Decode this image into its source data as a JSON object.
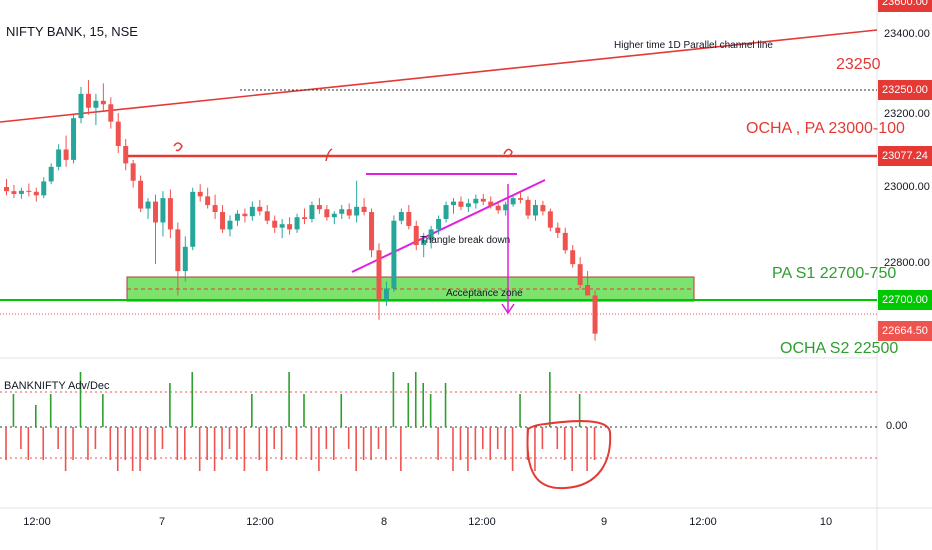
{
  "symbol_header": "NIFTY BANK, 15, NSE",
  "indicator_label": "BANKNIFTY Adv/Dec",
  "annotations": {
    "channel_note": "Higher time 1D Parallel channel line",
    "triangle_note": "Triangle break down",
    "acceptance_note": "Acceptance zone",
    "label_23250": "23250",
    "label_ocha_pa": "OCHA , PA 23000-100",
    "label_pa_s1": "PA S1 22700-750",
    "label_ocha_s2": "OCHA S2 22500"
  },
  "price_axis_ticks": [
    "23400.00",
    "23200.00",
    "23000.00",
    "22800.00"
  ],
  "price_tags": {
    "top_partial": "23600.00",
    "t_23250": "23250.00",
    "t_23077": "23077.24",
    "t_22700": "22700.00",
    "t_22664": "22664.50"
  },
  "indicator_axis": "0.00",
  "time_axis": [
    "12:00",
    "7",
    "12:00",
    "8",
    "12:00",
    "9",
    "12:00",
    "10"
  ],
  "colors": {
    "up": "#26a69a",
    "down": "#ef5350",
    "resistance": "#e53935",
    "support": "#00c800",
    "zone": "#66dd55",
    "triangle": "#e020e0"
  },
  "chart_data": {
    "type": "candlestick",
    "timeframe": "15",
    "y_range": [
      22590,
      23620
    ],
    "levels": [
      {
        "value": 23250,
        "style": "dotted"
      },
      {
        "value": 23077.24,
        "style": "solid"
      },
      {
        "value": 22700,
        "style": "solid"
      },
      {
        "value": 22664.5,
        "style": "dotted"
      }
    ],
    "zone": [
      22685,
      22760
    ],
    "candles": [
      [
        23082,
        23105,
        23058,
        23070
      ],
      [
        23070,
        23088,
        23050,
        23062
      ],
      [
        23062,
        23080,
        23048,
        23071
      ],
      [
        23071,
        23092,
        23055,
        23068
      ],
      [
        23068,
        23080,
        23040,
        23058
      ],
      [
        23058,
        23110,
        23050,
        23098
      ],
      [
        23098,
        23150,
        23090,
        23140
      ],
      [
        23140,
        23205,
        23130,
        23190
      ],
      [
        23190,
        23230,
        23140,
        23160
      ],
      [
        23160,
        23290,
        23150,
        23280
      ],
      [
        23280,
        23370,
        23265,
        23350
      ],
      [
        23350,
        23390,
        23290,
        23310
      ],
      [
        23310,
        23350,
        23260,
        23330
      ],
      [
        23330,
        23380,
        23300,
        23320
      ],
      [
        23320,
        23340,
        23250,
        23270
      ],
      [
        23270,
        23295,
        23180,
        23200
      ],
      [
        23200,
        23220,
        23130,
        23150
      ],
      [
        23150,
        23160,
        23080,
        23100
      ],
      [
        23100,
        23115,
        23010,
        23020
      ],
      [
        23020,
        23050,
        22990,
        23040
      ],
      [
        23040,
        23060,
        22860,
        22980
      ],
      [
        22980,
        23070,
        22940,
        23050
      ],
      [
        23050,
        23075,
        22935,
        22960
      ],
      [
        22960,
        22980,
        22770,
        22840
      ],
      [
        22840,
        22940,
        22810,
        22910
      ],
      [
        22910,
        23080,
        22900,
        23068
      ],
      [
        23068,
        23090,
        23040,
        23055
      ],
      [
        23055,
        23080,
        23020,
        23030
      ],
      [
        23030,
        23060,
        22990,
        23010
      ],
      [
        23010,
        23030,
        22950,
        22960
      ],
      [
        22960,
        23000,
        22940,
        22985
      ],
      [
        22985,
        23015,
        22970,
        23005
      ],
      [
        23005,
        23020,
        22980,
        22998
      ],
      [
        22998,
        23040,
        22985,
        23025
      ],
      [
        23025,
        23045,
        23000,
        23012
      ],
      [
        23012,
        23030,
        22975,
        22985
      ],
      [
        22985,
        23000,
        22950,
        22965
      ],
      [
        22965,
        22990,
        22935,
        22975
      ],
      [
        22975,
        22995,
        22945,
        22960
      ],
      [
        22960,
        23005,
        22950,
        22995
      ],
      [
        22995,
        23020,
        22975,
        22990
      ],
      [
        22990,
        23040,
        22980,
        23030
      ],
      [
        23030,
        23050,
        23005,
        23018
      ],
      [
        23018,
        23030,
        22985,
        22995
      ],
      [
        22995,
        23012,
        22975,
        23005
      ],
      [
        23005,
        23030,
        22990,
        23018
      ],
      [
        23018,
        23035,
        22990,
        23000
      ],
      [
        23000,
        23100,
        22980,
        23025
      ],
      [
        23025,
        23050,
        23000,
        23010
      ],
      [
        23010,
        23020,
        22880,
        22900
      ],
      [
        22900,
        22920,
        22700,
        22760
      ],
      [
        22760,
        22810,
        22740,
        22790
      ],
      [
        22790,
        23000,
        22780,
        22985
      ],
      [
        22985,
        23020,
        22975,
        23010
      ],
      [
        23010,
        23030,
        22960,
        22970
      ],
      [
        22970,
        22985,
        22900,
        22915
      ],
      [
        22915,
        22950,
        22880,
        22930
      ],
      [
        22930,
        22970,
        22905,
        22960
      ],
      [
        22960,
        23000,
        22945,
        22990
      ],
      [
        22990,
        23040,
        22980,
        23030
      ],
      [
        23030,
        23050,
        23005,
        23040
      ],
      [
        23040,
        23055,
        23015,
        23025
      ],
      [
        23025,
        23048,
        23010,
        23035
      ],
      [
        23035,
        23060,
        23020,
        23048
      ],
      [
        23048,
        23062,
        23030,
        23040
      ],
      [
        23040,
        23055,
        23020,
        23028
      ],
      [
        23028,
        23042,
        23005,
        23015
      ],
      [
        23015,
        23040,
        23000,
        23032
      ],
      [
        23032,
        23058,
        23025,
        23050
      ],
      [
        23050,
        23068,
        23035,
        23045
      ],
      [
        23045,
        23055,
        22990,
        23000
      ],
      [
        23000,
        23045,
        22985,
        23030
      ],
      [
        23030,
        23042,
        23000,
        23012
      ],
      [
        23012,
        23020,
        22955,
        22965
      ],
      [
        22965,
        22980,
        22935,
        22950
      ],
      [
        22950,
        22965,
        22890,
        22900
      ],
      [
        22900,
        22915,
        22850,
        22860
      ],
      [
        22860,
        22880,
        22790,
        22800
      ],
      [
        22800,
        22840,
        22780,
        22770
      ],
      [
        22770,
        22785,
        22640,
        22660
      ]
    ],
    "adv_dec": [
      -3,
      3,
      -2,
      -3,
      2,
      -3,
      3,
      -2,
      -4,
      -3,
      5,
      -3,
      -2,
      3,
      -3,
      -4,
      -3,
      -4,
      -4,
      -3,
      -3,
      -2,
      4,
      -3,
      -3,
      5,
      -4,
      -3,
      -4,
      -3,
      -2,
      -3,
      -4,
      3,
      -3,
      -4,
      -2,
      -3,
      5,
      -3,
      3,
      -3,
      -4,
      -2,
      -3,
      3,
      -2,
      -4,
      -3,
      -3,
      -2,
      -3,
      5,
      -4,
      4,
      5,
      4,
      3,
      -3,
      4,
      -4,
      -3,
      -4,
      -3,
      -2,
      -3,
      -2,
      -3,
      -4,
      3,
      -3,
      -4,
      -2,
      5,
      -2,
      -3,
      -4,
      3,
      -4,
      -3
    ],
    "x_labels": [
      "12:00",
      "7",
      "12:00",
      "8",
      "12:00",
      "9",
      "12:00",
      "10"
    ]
  }
}
